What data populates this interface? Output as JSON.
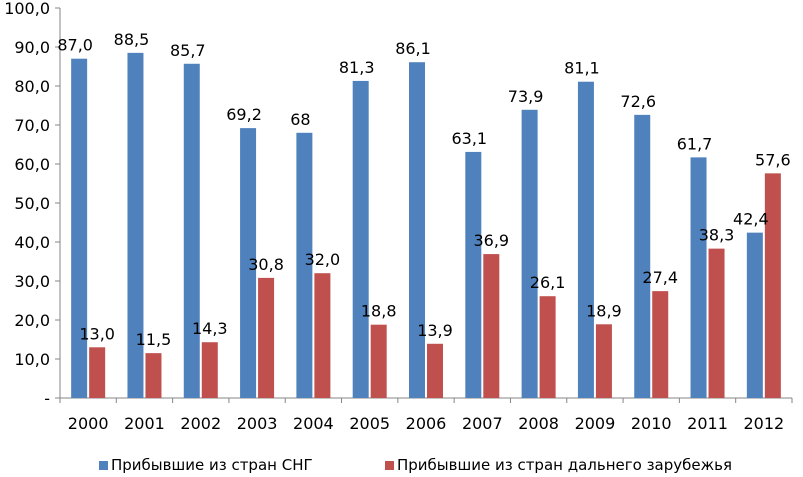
{
  "chart_data": {
    "type": "bar",
    "title": "",
    "xlabel": "",
    "ylabel": "",
    "ylim": [
      0,
      100
    ],
    "y_ticks": [
      "-",
      "10,0",
      "20,0",
      "30,0",
      "40,0",
      "50,0",
      "60,0",
      "70,0",
      "80,0",
      "90,0",
      "100,0"
    ],
    "grid": false,
    "legend_position": "bottom",
    "categories": [
      "2000",
      "2001",
      "2002",
      "2003",
      "2004",
      "2005",
      "2006",
      "2007",
      "2008",
      "2009",
      "2010",
      "2011",
      "2012"
    ],
    "series": [
      {
        "name": "Прибывшие из стран СНГ",
        "color": "#4F81BD",
        "values": [
          87.0,
          88.5,
          85.7,
          69.2,
          68,
          81.3,
          86.1,
          63.1,
          73.9,
          81.1,
          72.6,
          61.7,
          42.4
        ],
        "labels": [
          "87,0",
          "88,5",
          "85,7",
          "69,2",
          "68",
          "81,3",
          "86,1",
          "63,1",
          "73,9",
          "81,1",
          "72,6",
          "61,7",
          "42,4"
        ]
      },
      {
        "name": "Прибывшие из стран дальнего зарубежья",
        "color": "#C0504D",
        "values": [
          13.0,
          11.5,
          14.3,
          30.8,
          32.0,
          18.8,
          13.9,
          36.9,
          26.1,
          18.9,
          27.4,
          38.3,
          57.6
        ],
        "labels": [
          "13,0",
          "11,5",
          "14,3",
          "30,8",
          "32,0",
          "18,8",
          "13,9",
          "36,9",
          "26,1",
          "18,9",
          "27,4",
          "38,3",
          "57,6"
        ]
      }
    ]
  }
}
